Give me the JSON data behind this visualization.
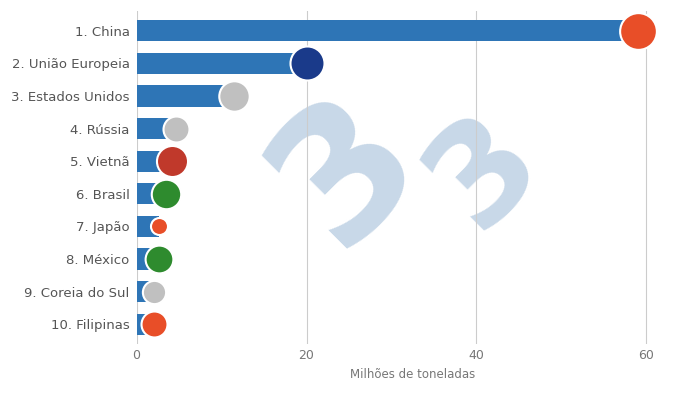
{
  "categories": [
    "10. Filipinas",
    "9. Coreia do Sul",
    "8. México",
    "7. Japão",
    "6. Brasil",
    "5. Vietnã",
    "4. Rússia",
    "3. Estados Unidos",
    "2. União Europeia",
    "1. China"
  ],
  "values": [
    2.0,
    2.1,
    2.6,
    2.7,
    3.5,
    4.2,
    4.6,
    11.5,
    20.0,
    59.0
  ],
  "bar_color": "#2e75b6",
  "xlabel": "Milhões de toneladas",
  "xlim": [
    0,
    65
  ],
  "xticks": [
    0,
    20,
    40,
    60
  ],
  "background_color": "#ffffff",
  "bar_height": 0.65,
  "grid_color": "#cccccc",
  "watermark_color": "#c8d8e8",
  "label_fontsize": 9.5,
  "tick_fontsize": 9,
  "xlabel_fontsize": 8.5
}
